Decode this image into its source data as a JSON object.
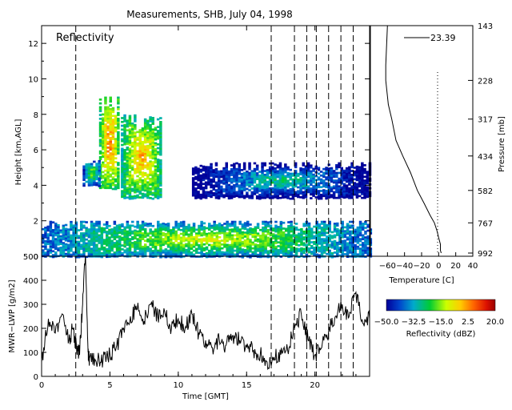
{
  "title": "Measurements, SHB, July 04, 1998",
  "chart_data": [
    {
      "type": "heatmap",
      "panel_label": "Reflectivity",
      "xlabel": "",
      "ylabel": "Height [km,AGL]",
      "xlim": [
        0,
        24
      ],
      "ylim": [
        0,
        13
      ],
      "yticks": [
        0,
        2,
        4,
        6,
        8,
        10,
        12
      ],
      "ytick_labels": [
        "0",
        "2",
        "4",
        "6",
        "8",
        "10",
        "12"
      ],
      "minor_yticks": [
        1,
        3,
        5,
        7,
        9,
        11,
        13
      ],
      "dashed_time_markers": [
        2.5,
        16.8,
        18.5,
        19.4,
        20.1,
        21.0,
        21.9,
        22.8
      ],
      "cloud_regions": [
        {
          "t0": 4.2,
          "t1": 5.6,
          "z0": 3.8,
          "z1": 9.0,
          "core_dbz": 5
        },
        {
          "t0": 5.8,
          "t1": 8.7,
          "z0": 3.3,
          "z1": 8.0,
          "core_dbz": 0
        },
        {
          "t0": 3.0,
          "t1": 4.3,
          "z0": 4.0,
          "z1": 5.5,
          "core_dbz": -15
        },
        {
          "t0": 11.0,
          "t1": 24.0,
          "z0": 3.3,
          "z1": 5.3,
          "core_dbz": -25
        },
        {
          "t0": 0.0,
          "t1": 24.0,
          "z0": 0.0,
          "z1": 2.0,
          "core_dbz": -10
        }
      ]
    },
    {
      "type": "line",
      "xlabel": "Time [GMT]",
      "ylabel": "MWR−LWP [g/m2]",
      "xlim": [
        0,
        24
      ],
      "ylim": [
        0,
        500
      ],
      "xticks": [
        0,
        5,
        10,
        15,
        20
      ],
      "xtick_labels": [
        "0",
        "5",
        "10",
        "15",
        "20"
      ],
      "yticks": [
        0,
        100,
        200,
        300,
        400,
        500
      ],
      "ytick_labels": [
        "0",
        "100",
        "200",
        "300",
        "400",
        "500"
      ],
      "series": [
        {
          "x": [
            0,
            0.5,
            1.0,
            1.5,
            2.0,
            2.3,
            2.6,
            2.8,
            3.0,
            3.2,
            3.4,
            3.5,
            4.0,
            4.5,
            5.0,
            5.5,
            6.0,
            6.5,
            7.0,
            7.5,
            8.0,
            8.5,
            9.0,
            9.5,
            10.0,
            10.5,
            11.0,
            11.5,
            12.0,
            12.5,
            13.0,
            13.5,
            14.0,
            14.5,
            15.0,
            15.5,
            16.0,
            16.5,
            17.0,
            17.5,
            18.0,
            18.5,
            19.0,
            19.5,
            20.0,
            20.5,
            21.0,
            21.5,
            22.0,
            22.5,
            23.0,
            23.5,
            24.0
          ],
          "y": [
            60,
            240,
            180,
            260,
            150,
            200,
            90,
            120,
            300,
            500,
            100,
            75,
            60,
            70,
            90,
            130,
            200,
            250,
            280,
            230,
            300,
            250,
            270,
            200,
            240,
            200,
            260,
            180,
            150,
            120,
            150,
            130,
            170,
            150,
            120,
            110,
            90,
            60,
            80,
            90,
            110,
            200,
            260,
            150,
            90,
            120,
            190,
            250,
            300,
            250,
            350,
            220,
            240
          ]
        }
      ]
    },
    {
      "type": "line",
      "xlabel": "Temperature [C]",
      "ylabel": "Pressure [mb]",
      "annotation": "23.39",
      "xlim": [
        -80,
        40
      ],
      "xticks": [
        -60,
        -40,
        -20,
        0,
        20,
        40
      ],
      "xtick_labels": [
        "−60",
        "−40",
        "−20",
        "0",
        "20",
        "40"
      ],
      "pressure_ticks": [
        143,
        228,
        317,
        434,
        582,
        767,
        992
      ],
      "pressure_tick_labels": [
        "143",
        "228",
        "317",
        "434",
        "582",
        "767",
        "992"
      ],
      "series": [
        {
          "temperature": [
            -60,
            -62,
            -62,
            -59,
            -55,
            -50,
            -42,
            -33,
            -25,
            -17,
            -10,
            -5,
            -2,
            0,
            2,
            2,
            3
          ],
          "pressure": [
            143,
            200,
            228,
            280,
            317,
            380,
            434,
            500,
            582,
            650,
            720,
            767,
            820,
            870,
            920,
            970,
            992
          ]
        }
      ]
    },
    {
      "type": "heatmap",
      "xlabel": "Reflectivity (dBZ)",
      "colorbar_ticks": [
        -50.0,
        -32.5,
        -15.0,
        2.5,
        20.0
      ],
      "colorbar_tick_labels": [
        "−50.0",
        "−32.5",
        "−15.0",
        "2.5",
        "20.0"
      ],
      "range": [
        -50,
        20
      ]
    }
  ]
}
